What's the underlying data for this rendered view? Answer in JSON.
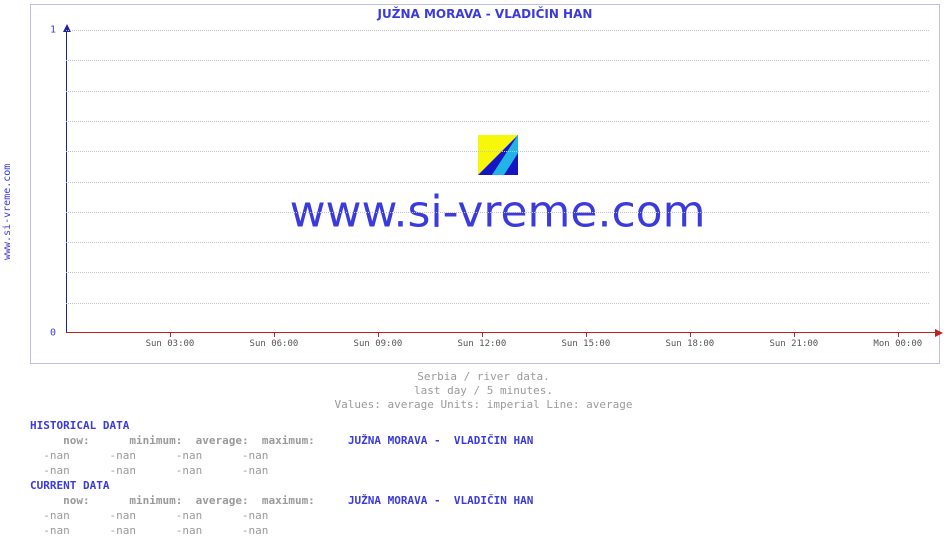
{
  "side_label": "www.si-vreme.com",
  "chart": {
    "type": "line",
    "title": "JUŽNA MORAVA -  VLADIČIN HAN",
    "watermark_text": "www.si-vreme.com",
    "background_color": "#ffffff",
    "border_color": "#bfbfeb",
    "grid_color": "#c5c5c5",
    "y_axis_color": "#2020a0",
    "x_axis_color": "#c02020",
    "title_color": "#3a3adf",
    "tick_label_color": "#555555",
    "ylim": [
      0,
      1
    ],
    "yticks": [
      0,
      1
    ],
    "grid_y_count": 10,
    "xticks": [
      "Sun 03:00",
      "Sun 06:00",
      "Sun 09:00",
      "Sun 12:00",
      "Sun 15:00",
      "Sun 18:00",
      "Sun 21:00",
      "Mon 00:00"
    ],
    "xlim_fraction_start": 0.0,
    "xlim_fraction_end": 1.0,
    "series": [],
    "caption_1": "Serbia / river data.",
    "caption_2": "last day / 5 minutes.",
    "caption_3": "Values: average  Units: imperial  Line: average",
    "watermark_icon_colors": {
      "yellow": "#f7f70a",
      "cyan": "#22b4e6",
      "blue": "#1515c4"
    },
    "watermark_font_size": 44
  },
  "historical": {
    "heading": "HISTORICAL DATA",
    "cols": [
      "now:",
      "minimum:",
      "average:",
      "maximum:"
    ],
    "series_label": "JUŽNA MORAVA -  VLADIČIN HAN",
    "rows": [
      [
        "-nan",
        "-nan",
        "-nan",
        "-nan"
      ],
      [
        "-nan",
        "-nan",
        "-nan",
        "-nan"
      ]
    ]
  },
  "current": {
    "heading": "CURRENT DATA",
    "cols": [
      "now:",
      "minimum:",
      "average:",
      "maximum:"
    ],
    "series_label": "JUŽNA MORAVA -  VLADIČIN HAN",
    "rows": [
      [
        "-nan",
        "-nan",
        "-nan",
        "-nan"
      ],
      [
        "-nan",
        "-nan",
        "-nan",
        "-nan"
      ]
    ]
  }
}
